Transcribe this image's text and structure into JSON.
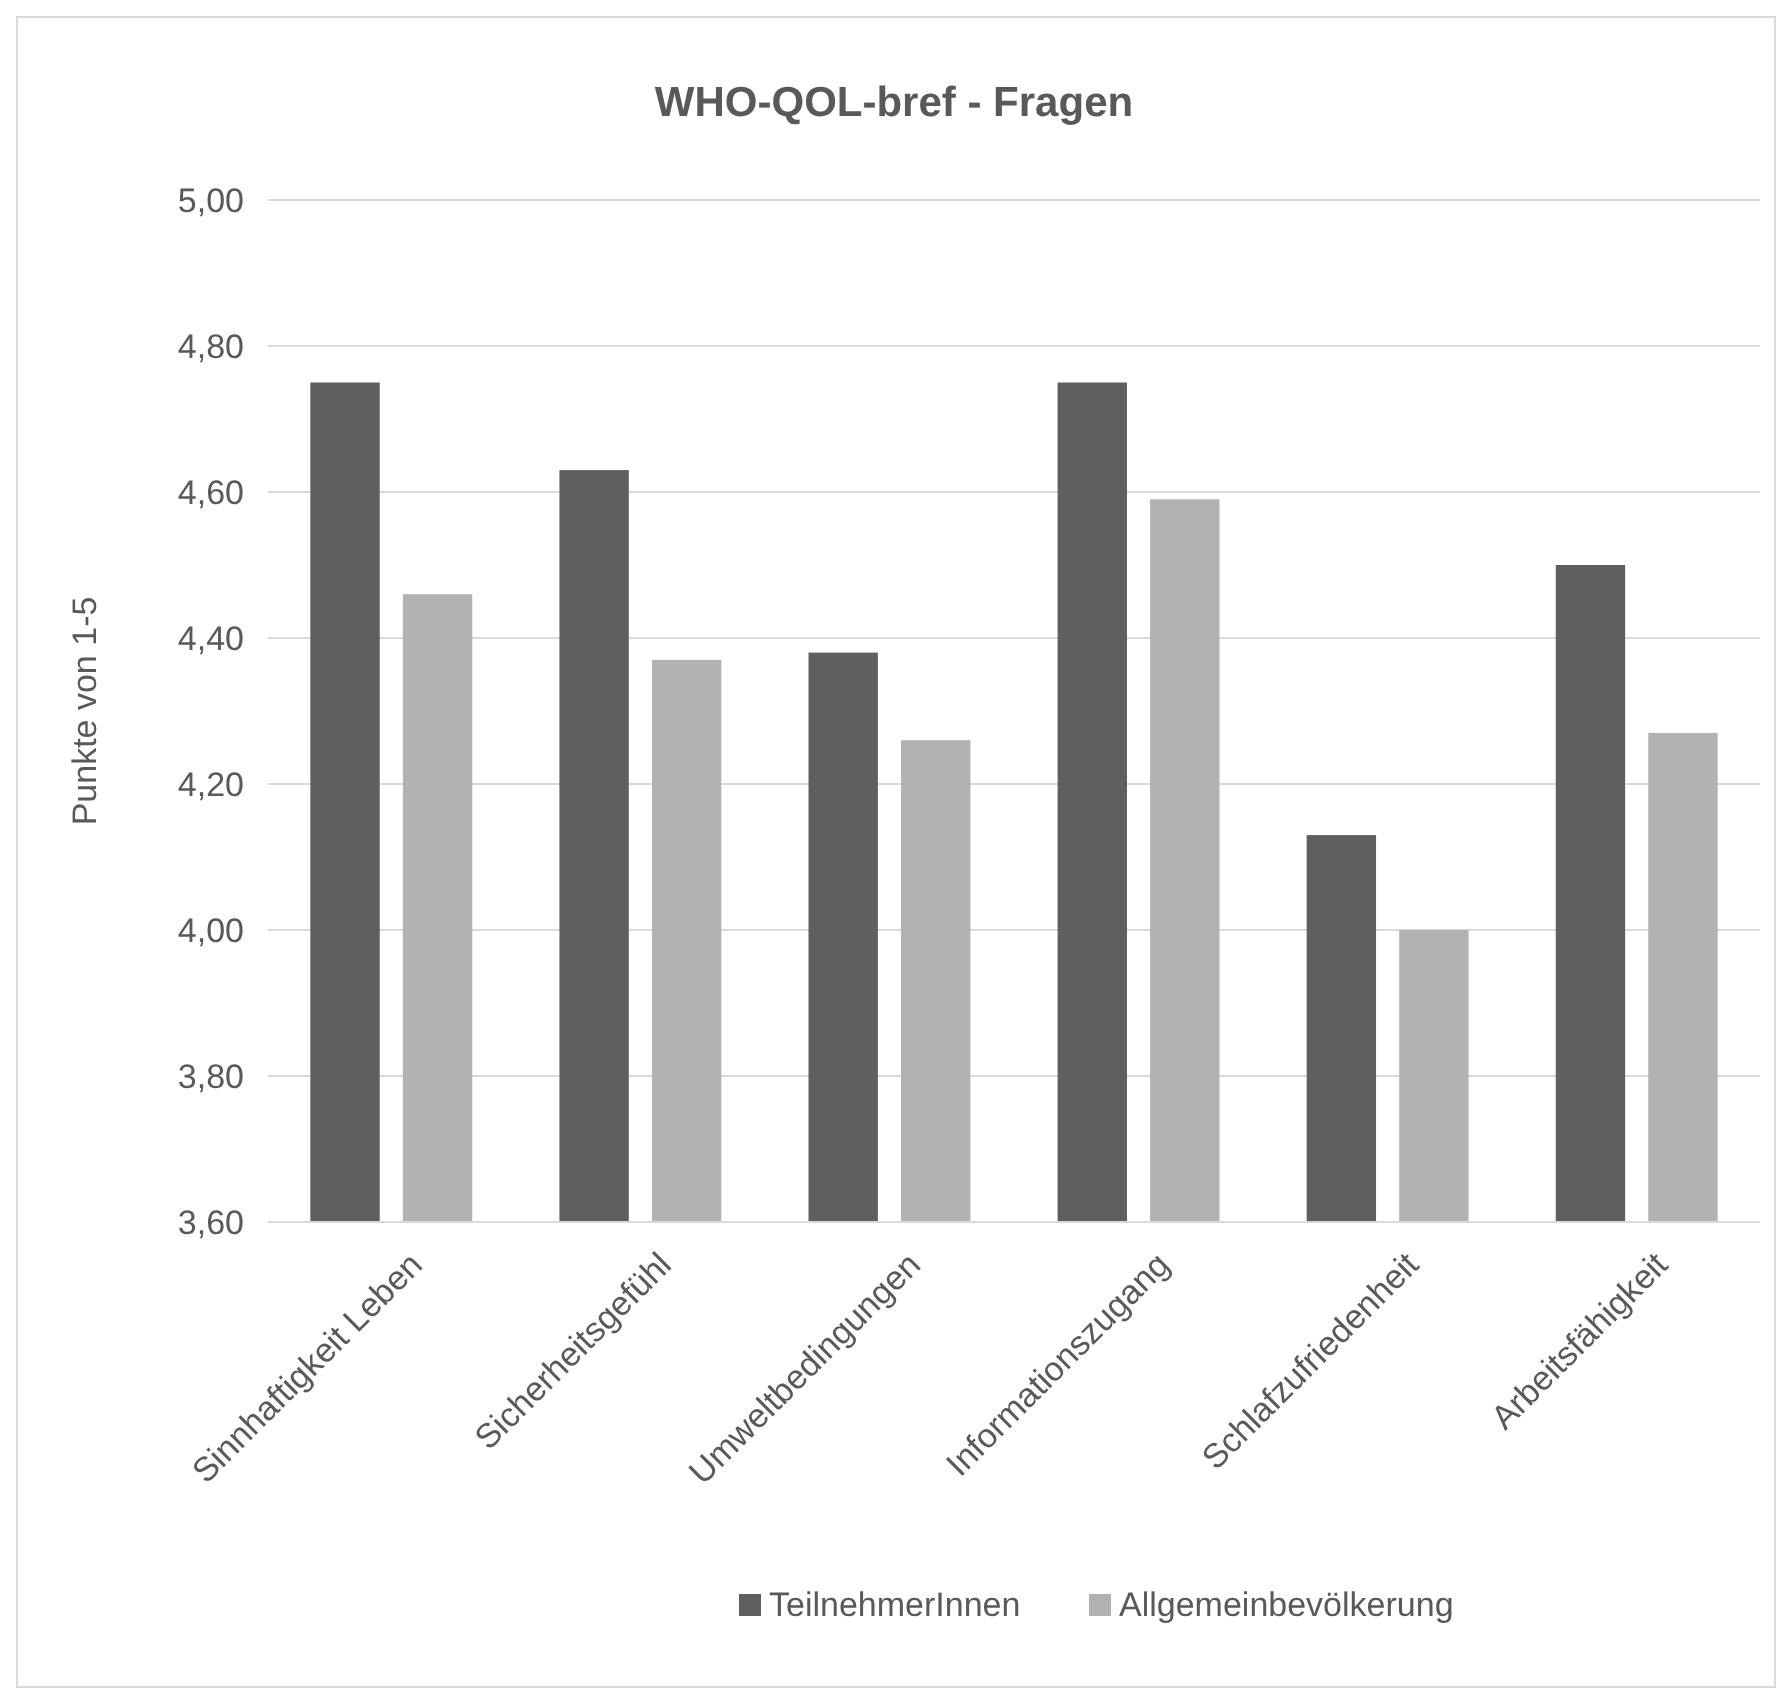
{
  "chart_data": {
    "type": "bar",
    "title": "WHO-QOL-bref - Fragen",
    "ylabel": "Punkte von 1-5",
    "categories": [
      "Sinnhaftigkeit Leben",
      "Sicherheitsgefühl",
      "Umweltbedingungen",
      "Informationszugang",
      "Schlafzufriedenheit",
      "Arbeitsfähigkeit"
    ],
    "series": [
      {
        "name": "TeilnehmerInnen",
        "color": "#5f5f5f",
        "values": [
          4.75,
          4.63,
          4.38,
          4.75,
          4.13,
          4.5
        ]
      },
      {
        "name": "Allgemeinbevölkerung",
        "color": "#b2b2b2",
        "values": [
          4.46,
          4.37,
          4.26,
          4.59,
          4.0,
          4.27
        ]
      }
    ],
    "ylim": [
      3.6,
      5.0
    ],
    "yticks": [
      {
        "value": 3.6,
        "label": "3,60"
      },
      {
        "value": 3.8,
        "label": "3,80"
      },
      {
        "value": 4.0,
        "label": "4,00"
      },
      {
        "value": 4.2,
        "label": "4,20"
      },
      {
        "value": 4.4,
        "label": "4,40"
      },
      {
        "value": 4.6,
        "label": "4,60"
      },
      {
        "value": 4.8,
        "label": "4,80"
      },
      {
        "value": 5.0,
        "label": "5,00"
      }
    ],
    "grid": "y",
    "legend": "bottom"
  }
}
